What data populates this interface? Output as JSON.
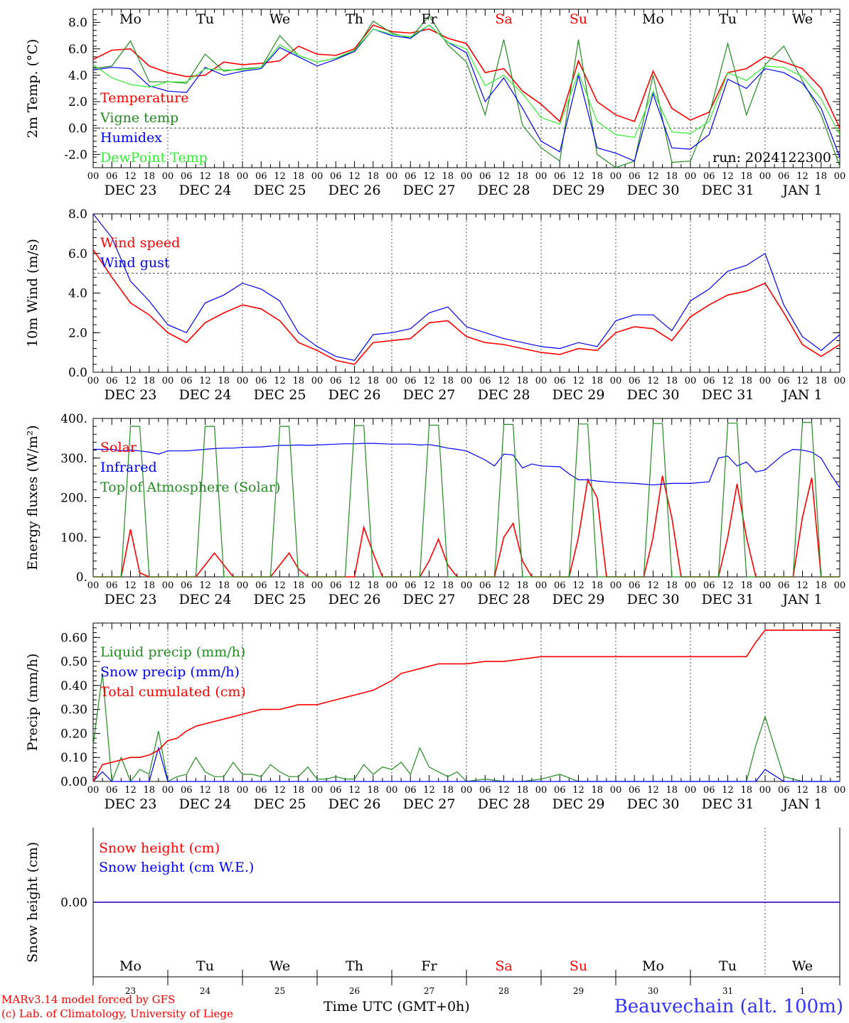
{
  "colors": {
    "red": "#ff0000",
    "green": "#228b22",
    "blue": "#0000ff",
    "lime": "#33ee33",
    "gray": "#666666"
  },
  "days": {
    "top": [
      "Mo",
      "Tu",
      "We",
      "Th",
      "Fr",
      "Sa",
      "Su",
      "Mo",
      "Tu",
      "We"
    ],
    "weekend_flags": [
      false,
      false,
      false,
      false,
      false,
      true,
      true,
      false,
      false,
      false
    ],
    "dates": [
      "DEC 23",
      "DEC 24",
      "DEC 25",
      "DEC 26",
      "DEC 27",
      "DEC 28",
      "DEC 29",
      "DEC 30",
      "DEC 31",
      "JAN  1"
    ],
    "day_numbers": [
      "23",
      "24",
      "25",
      "26",
      "27",
      "28",
      "29",
      "30",
      "31",
      "1"
    ],
    "hours": [
      "00",
      "06",
      "12",
      "18"
    ],
    "last_hour": "00"
  },
  "footer": {
    "credit_line1": "MARv3.14 model forced by GFS",
    "credit_line2": "(c) Lab. of Climatology, University of Liege",
    "axis_title": "Time UTC (GMT+0h)",
    "station": "Beauvechain (alt. 100m)"
  },
  "chart_data": [
    {
      "type": "line",
      "ylabel": "2m Temp. (°C)",
      "ylim": [
        -3.0,
        9.0
      ],
      "yticks": [
        -2.0,
        0.0,
        2.0,
        4.0,
        6.0,
        8.0
      ],
      "ytick_labels": [
        "-2.0",
        "0.0",
        "2.0",
        "4.0",
        "6.0",
        "8.0"
      ],
      "annotation": "run: 2024122300",
      "x": [
        0,
        6,
        12,
        18,
        24,
        30,
        36,
        42,
        48,
        54,
        60,
        66,
        72,
        78,
        84,
        90,
        96,
        102,
        108,
        114,
        120,
        126,
        132,
        138,
        144,
        150,
        156,
        162,
        168,
        174,
        180,
        186,
        192,
        198,
        204,
        210,
        216,
        222,
        228,
        234,
        240
      ],
      "series": [
        {
          "name": "Temperature",
          "color": "#ff0000",
          "values": [
            5.2,
            5.9,
            6.0,
            4.7,
            4.2,
            3.9,
            4.0,
            5.0,
            4.8,
            4.9,
            5.1,
            6.2,
            5.6,
            5.5,
            6.0,
            7.8,
            7.3,
            7.2,
            7.5,
            6.8,
            6.4,
            4.2,
            4.5,
            2.8,
            1.8,
            0.5,
            5.1,
            2.0,
            1.0,
            0.5,
            4.3,
            1.5,
            0.6,
            1.2,
            4.2,
            4.5,
            5.4,
            5.0,
            4.5,
            3.0,
            0.0
          ]
        },
        {
          "name": "Vigne temp",
          "color": "#228b22",
          "values": [
            4.5,
            4.7,
            6.6,
            3.5,
            3.5,
            3.4,
            5.6,
            4.3,
            4.5,
            4.6,
            7.0,
            5.5,
            5.0,
            5.3,
            5.8,
            8.1,
            7.2,
            6.8,
            8.5,
            6.3,
            5.0,
            1.0,
            6.7,
            0.2,
            -1.5,
            -2.5,
            6.7,
            -2.0,
            -3.0,
            -2.5,
            4.0,
            -2.6,
            -2.5,
            1.0,
            6.4,
            1.0,
            4.8,
            6.2,
            3.6,
            1.0,
            -2.9
          ]
        },
        {
          "name": "Humidex",
          "color": "#0000ff",
          "values": [
            4.4,
            4.6,
            4.5,
            3.2,
            2.8,
            2.7,
            4.6,
            4.0,
            4.3,
            4.5,
            6.1,
            5.4,
            4.7,
            5.2,
            5.8,
            7.5,
            7.0,
            6.8,
            7.8,
            6.5,
            5.7,
            2.0,
            3.8,
            1.5,
            -1.0,
            -1.8,
            4.0,
            -1.5,
            -1.9,
            -2.5,
            2.6,
            -1.5,
            -1.6,
            -0.5,
            3.7,
            3.0,
            4.5,
            4.2,
            3.4,
            1.5,
            -2.2
          ]
        },
        {
          "name": "DewPoint Temp",
          "color": "#33ee33",
          "values": [
            4.8,
            3.8,
            3.3,
            3.1,
            3.5,
            3.5,
            4.5,
            4.4,
            4.4,
            4.6,
            6.3,
            5.5,
            5.0,
            5.3,
            5.9,
            7.5,
            7.1,
            6.9,
            7.8,
            6.5,
            6.0,
            3.2,
            4.0,
            2.6,
            0.8,
            0.3,
            4.2,
            0.5,
            -0.5,
            -0.7,
            2.8,
            -0.3,
            -0.4,
            0.5,
            4.2,
            3.6,
            4.7,
            4.6,
            3.9,
            2.2,
            -0.5
          ]
        }
      ]
    },
    {
      "type": "line",
      "ylabel": "10m Wind (m/s)",
      "ylim": [
        0.0,
        8.0
      ],
      "yticks": [
        0.0,
        2.0,
        4.0,
        6.0,
        8.0
      ],
      "ytick_labels": [
        "0.0",
        "2.0",
        "4.0",
        "6.0",
        "8.0"
      ],
      "x": [
        0,
        6,
        12,
        18,
        24,
        30,
        36,
        42,
        48,
        54,
        60,
        66,
        72,
        78,
        84,
        90,
        96,
        102,
        108,
        114,
        120,
        126,
        132,
        138,
        144,
        150,
        156,
        162,
        168,
        174,
        180,
        186,
        192,
        198,
        204,
        210,
        216,
        222,
        228,
        234,
        240
      ],
      "series": [
        {
          "name": "Wind speed",
          "color": "#ff0000",
          "values": [
            6.2,
            4.8,
            3.5,
            2.9,
            2.0,
            1.5,
            2.5,
            3.0,
            3.4,
            3.2,
            2.6,
            1.5,
            1.1,
            0.6,
            0.4,
            1.5,
            1.6,
            1.7,
            2.5,
            2.6,
            1.8,
            1.5,
            1.4,
            1.2,
            1.0,
            0.9,
            1.2,
            1.1,
            2.0,
            2.3,
            2.2,
            1.6,
            2.8,
            3.4,
            3.9,
            4.1,
            4.5,
            3.0,
            1.4,
            0.8,
            1.4
          ]
        },
        {
          "name": "Wind gust",
          "color": "#0000ff",
          "values": [
            8.1,
            6.8,
            4.6,
            3.6,
            2.4,
            2.0,
            3.5,
            3.9,
            4.5,
            4.2,
            3.6,
            2.0,
            1.3,
            0.8,
            0.6,
            1.9,
            2.0,
            2.2,
            3.0,
            3.3,
            2.3,
            2.0,
            1.7,
            1.5,
            1.3,
            1.2,
            1.5,
            1.3,
            2.6,
            2.9,
            2.9,
            2.1,
            3.6,
            4.2,
            5.1,
            5.4,
            6.0,
            3.4,
            1.8,
            1.1,
            1.9
          ]
        }
      ],
      "reference_line": 5.0
    },
    {
      "type": "line",
      "ylabel": "Energy fluxes (W/m²)",
      "ylim": [
        0,
        400
      ],
      "yticks": [
        0,
        100,
        200,
        300,
        400
      ],
      "ytick_labels": [
        "0.",
        "100.",
        "200.",
        "300.",
        "400."
      ],
      "x": [
        0,
        6,
        9,
        12,
        15,
        18,
        21,
        24,
        30,
        33,
        36,
        39,
        42,
        45,
        48,
        54,
        57,
        60,
        63,
        66,
        69,
        72,
        78,
        81,
        84,
        87,
        90,
        93,
        96,
        102,
        105,
        108,
        111,
        114,
        117,
        120,
        126,
        129,
        132,
        135,
        138,
        141,
        144,
        150,
        153,
        156,
        159,
        162,
        165,
        168,
        174,
        177,
        180,
        183,
        186,
        189,
        192,
        198,
        201,
        204,
        207,
        210,
        213,
        216,
        222,
        225,
        228,
        231,
        234,
        237,
        240
      ],
      "series": [
        {
          "name": "Solar",
          "color": "#ff0000",
          "values": [
            0,
            0,
            0,
            120,
            10,
            0,
            0,
            0,
            0,
            0,
            30,
            60,
            30,
            0,
            0,
            0,
            0,
            30,
            60,
            20,
            0,
            0,
            0,
            0,
            0,
            125,
            60,
            0,
            0,
            0,
            0,
            40,
            95,
            30,
            0,
            0,
            0,
            0,
            100,
            135,
            40,
            0,
            0,
            0,
            0,
            100,
            245,
            200,
            0,
            0,
            0,
            0,
            100,
            255,
            150,
            0,
            0,
            0,
            0,
            100,
            235,
            100,
            0,
            0,
            0,
            0,
            150,
            250,
            0,
            0,
            0
          ]
        },
        {
          "name": "Infrared",
          "color": "#0000ff",
          "values": [
            322,
            322,
            318,
            320,
            318,
            315,
            310,
            318,
            318,
            320,
            322,
            324,
            325,
            325,
            327,
            328,
            330,
            332,
            332,
            333,
            332,
            333,
            335,
            336,
            336,
            337,
            337,
            336,
            335,
            335,
            333,
            334,
            330,
            325,
            322,
            318,
            295,
            280,
            310,
            308,
            275,
            285,
            280,
            278,
            260,
            245,
            245,
            242,
            240,
            238,
            236,
            234,
            232,
            234,
            236,
            236,
            236,
            240,
            300,
            305,
            280,
            290,
            265,
            270,
            310,
            322,
            320,
            315,
            300,
            260,
            225
          ]
        },
        {
          "name": "Top of Atmosphere (Solar)",
          "color": "#228b22",
          "values": [
            0,
            0,
            0,
            380,
            380,
            0,
            0,
            0,
            0,
            0,
            380,
            380,
            0,
            0,
            0,
            0,
            0,
            380,
            380,
            0,
            0,
            0,
            0,
            0,
            382,
            382,
            0,
            0,
            0,
            0,
            0,
            383,
            383,
            0,
            0,
            0,
            0,
            0,
            385,
            385,
            0,
            0,
            0,
            0,
            0,
            386,
            386,
            0,
            0,
            0,
            0,
            0,
            387,
            387,
            0,
            0,
            0,
            0,
            0,
            388,
            388,
            0,
            0,
            0,
            0,
            0,
            390,
            390,
            0,
            0,
            0
          ]
        }
      ]
    },
    {
      "type": "line",
      "ylabel": "Precip (mm/h)",
      "ylim": [
        0.0,
        0.66
      ],
      "yticks": [
        0.0,
        0.1,
        0.2,
        0.3,
        0.4,
        0.5,
        0.6
      ],
      "ytick_labels": [
        "0.00",
        "0.10",
        "0.20",
        "0.30",
        "0.40",
        "0.50",
        "0.60"
      ],
      "x": [
        0,
        3,
        6,
        9,
        12,
        15,
        18,
        21,
        24,
        27,
        30,
        33,
        36,
        39,
        42,
        45,
        48,
        51,
        54,
        57,
        60,
        63,
        66,
        69,
        72,
        75,
        78,
        81,
        84,
        87,
        90,
        93,
        96,
        99,
        102,
        105,
        108,
        111,
        114,
        117,
        120,
        126,
        132,
        138,
        144,
        150,
        156,
        162,
        168,
        174,
        180,
        186,
        192,
        198,
        204,
        207,
        210,
        213,
        216,
        222,
        228,
        234,
        240
      ],
      "series": [
        {
          "name": "Liquid precip (mm/h)",
          "color": "#228b22",
          "values": [
            0.15,
            0.45,
            0.0,
            0.1,
            0.0,
            0.05,
            0.03,
            0.21,
            0.0,
            0.02,
            0.03,
            0.1,
            0.04,
            0.02,
            0.02,
            0.08,
            0.03,
            0.03,
            0.02,
            0.07,
            0.04,
            0.02,
            0.02,
            0.06,
            0.01,
            0.01,
            0.02,
            0.01,
            0.01,
            0.07,
            0.03,
            0.06,
            0.05,
            0.08,
            0.03,
            0.14,
            0.06,
            0.04,
            0.02,
            0.04,
            0.0,
            0.01,
            0.0,
            0.0,
            0.01,
            0.03,
            0.0,
            0.0,
            0.0,
            0.0,
            0.0,
            0.0,
            0.0,
            0.0,
            0.0,
            0.0,
            0.0,
            0.15,
            0.27,
            0.02,
            0.0,
            0.0,
            0.0
          ]
        },
        {
          "name": "Snow precip (mm/h)",
          "color": "#0000ff",
          "values": [
            0.0,
            0.04,
            0.0,
            0.0,
            0.0,
            0.0,
            0.0,
            0.14,
            0.0,
            0.0,
            0.0,
            0.0,
            0.0,
            0.0,
            0.0,
            0.0,
            0.0,
            0.0,
            0.0,
            0.0,
            0.0,
            0.0,
            0.0,
            0.0,
            0.0,
            0.0,
            0.0,
            0.0,
            0.0,
            0.0,
            0.0,
            0.0,
            0.0,
            0.0,
            0.0,
            0.0,
            0.0,
            0.0,
            0.0,
            0.0,
            0.0,
            0.0,
            0.0,
            0.0,
            0.0,
            0.0,
            0.0,
            0.0,
            0.0,
            0.0,
            0.0,
            0.0,
            0.0,
            0.0,
            0.0,
            0.0,
            0.0,
            0.0,
            0.05,
            0.0,
            0.0,
            0.0,
            0.0
          ]
        },
        {
          "name": "Total cumulated (cm)",
          "color": "#ff0000",
          "values": [
            0.0,
            0.07,
            0.08,
            0.09,
            0.1,
            0.1,
            0.11,
            0.13,
            0.17,
            0.18,
            0.21,
            0.23,
            0.24,
            0.25,
            0.26,
            0.27,
            0.28,
            0.29,
            0.3,
            0.3,
            0.3,
            0.31,
            0.32,
            0.32,
            0.32,
            0.33,
            0.34,
            0.35,
            0.36,
            0.37,
            0.38,
            0.4,
            0.42,
            0.45,
            0.46,
            0.47,
            0.48,
            0.49,
            0.49,
            0.49,
            0.49,
            0.5,
            0.5,
            0.51,
            0.52,
            0.52,
            0.52,
            0.52,
            0.52,
            0.52,
            0.52,
            0.52,
            0.52,
            0.52,
            0.52,
            0.52,
            0.52,
            0.58,
            0.63,
            0.63,
            0.63,
            0.63,
            0.63
          ]
        }
      ]
    },
    {
      "type": "line",
      "ylabel": "Snow height (cm)",
      "ylim": [
        -1.0,
        1.0
      ],
      "yticks": [
        0.0
      ],
      "ytick_labels": [
        "0.00"
      ],
      "x": [
        0,
        240
      ],
      "series": [
        {
          "name": "Snow height (cm)",
          "color": "#ff0000",
          "values": [
            0.0,
            0.0
          ]
        },
        {
          "name": "Snow height (cm W.E.)",
          "color": "#0000ff",
          "values": [
            0.0,
            0.0
          ]
        }
      ]
    }
  ]
}
